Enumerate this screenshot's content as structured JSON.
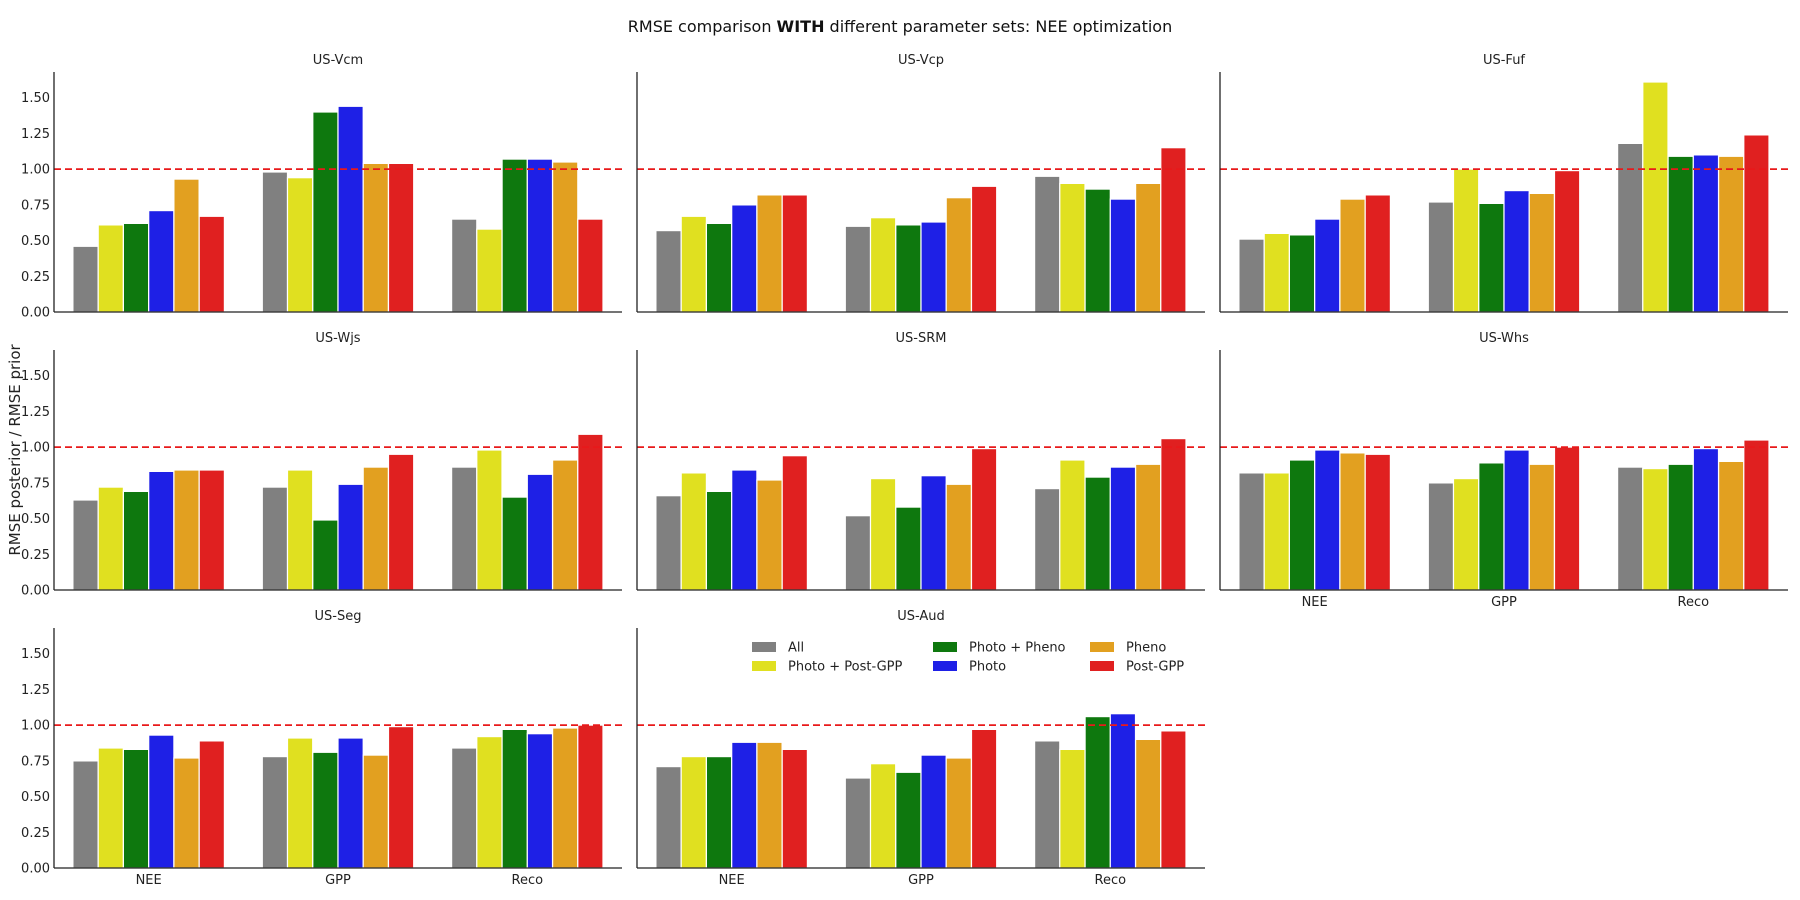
{
  "figure": {
    "title_pre": "RMSE comparison ",
    "title_bold": "WITH",
    "title_post": " different parameter sets: NEE optimization",
    "ylabel": "RMSE posterior / RMSE prior"
  },
  "chart_data": {
    "type": "bar",
    "categories": [
      "NEE",
      "GPP",
      "Reco"
    ],
    "ylim": [
      0,
      1.68
    ],
    "yticks": [
      "0.00",
      "0.25",
      "0.50",
      "0.75",
      "1.00",
      "1.25",
      "1.50"
    ],
    "reference_line": 1.0,
    "reference_color": "#e8191a",
    "grid": false,
    "legend_position": "inside US-Aud panel, top",
    "series": [
      {
        "name": "All",
        "color": "#808080"
      },
      {
        "name": "Photo + Post-GPP",
        "color": "#e0e020"
      },
      {
        "name": "Photo + Pheno",
        "color": "#0e780e"
      },
      {
        "name": "Photo",
        "color": "#1e20e6"
      },
      {
        "name": "Pheno",
        "color": "#e2a020"
      },
      {
        "name": "Post-GPP",
        "color": "#e02020"
      }
    ],
    "legend_order": [
      "All",
      "Photo + Post-GPP",
      "Photo + Pheno",
      "Photo",
      "Pheno",
      "Post-GPP"
    ],
    "panels": [
      {
        "title": "US-Vcm",
        "values": [
          [
            0.46,
            0.61,
            0.62,
            0.71,
            0.93,
            0.67
          ],
          [
            0.98,
            0.94,
            1.4,
            1.44,
            1.04,
            1.04
          ],
          [
            0.65,
            0.58,
            1.07,
            1.07,
            1.05,
            0.65
          ]
        ]
      },
      {
        "title": "US-Vcp",
        "values": [
          [
            0.57,
            0.67,
            0.62,
            0.75,
            0.82,
            0.82
          ],
          [
            0.6,
            0.66,
            0.61,
            0.63,
            0.8,
            0.88
          ],
          [
            0.95,
            0.9,
            0.86,
            0.79,
            0.9,
            1.15
          ]
        ]
      },
      {
        "title": "US-Fuf",
        "values": [
          [
            0.51,
            0.55,
            0.54,
            0.65,
            0.79,
            0.82
          ],
          [
            0.77,
            1.0,
            0.76,
            0.85,
            0.83,
            0.99
          ],
          [
            1.18,
            1.61,
            1.09,
            1.1,
            1.09,
            1.24
          ]
        ]
      },
      {
        "title": "US-Wjs",
        "values": [
          [
            0.63,
            0.72,
            0.69,
            0.83,
            0.84,
            0.84
          ],
          [
            0.72,
            0.84,
            0.49,
            0.74,
            0.86,
            0.95
          ],
          [
            0.86,
            0.98,
            0.65,
            0.81,
            0.91,
            1.09
          ]
        ]
      },
      {
        "title": "US-SRM",
        "values": [
          [
            0.66,
            0.82,
            0.69,
            0.84,
            0.77,
            0.94
          ],
          [
            0.52,
            0.78,
            0.58,
            0.8,
            0.74,
            0.99
          ],
          [
            0.71,
            0.91,
            0.79,
            0.86,
            0.88,
            1.06
          ]
        ]
      },
      {
        "title": "US-Whs",
        "values": [
          [
            0.82,
            0.82,
            0.91,
            0.98,
            0.96,
            0.95
          ],
          [
            0.75,
            0.78,
            0.89,
            0.98,
            0.88,
            1.0
          ],
          [
            0.86,
            0.85,
            0.88,
            0.99,
            0.9,
            1.05
          ]
        ]
      },
      {
        "title": "US-Seg",
        "values": [
          [
            0.75,
            0.84,
            0.83,
            0.93,
            0.77,
            0.89
          ],
          [
            0.78,
            0.91,
            0.81,
            0.91,
            0.79,
            0.99
          ],
          [
            0.84,
            0.92,
            0.97,
            0.94,
            0.98,
            1.0
          ]
        ]
      },
      {
        "title": "US-Aud",
        "values": [
          [
            0.71,
            0.78,
            0.78,
            0.88,
            0.88,
            0.83
          ],
          [
            0.63,
            0.73,
            0.67,
            0.79,
            0.77,
            0.97
          ],
          [
            0.89,
            0.83,
            1.06,
            1.08,
            0.9,
            0.96
          ]
        ]
      }
    ]
  }
}
